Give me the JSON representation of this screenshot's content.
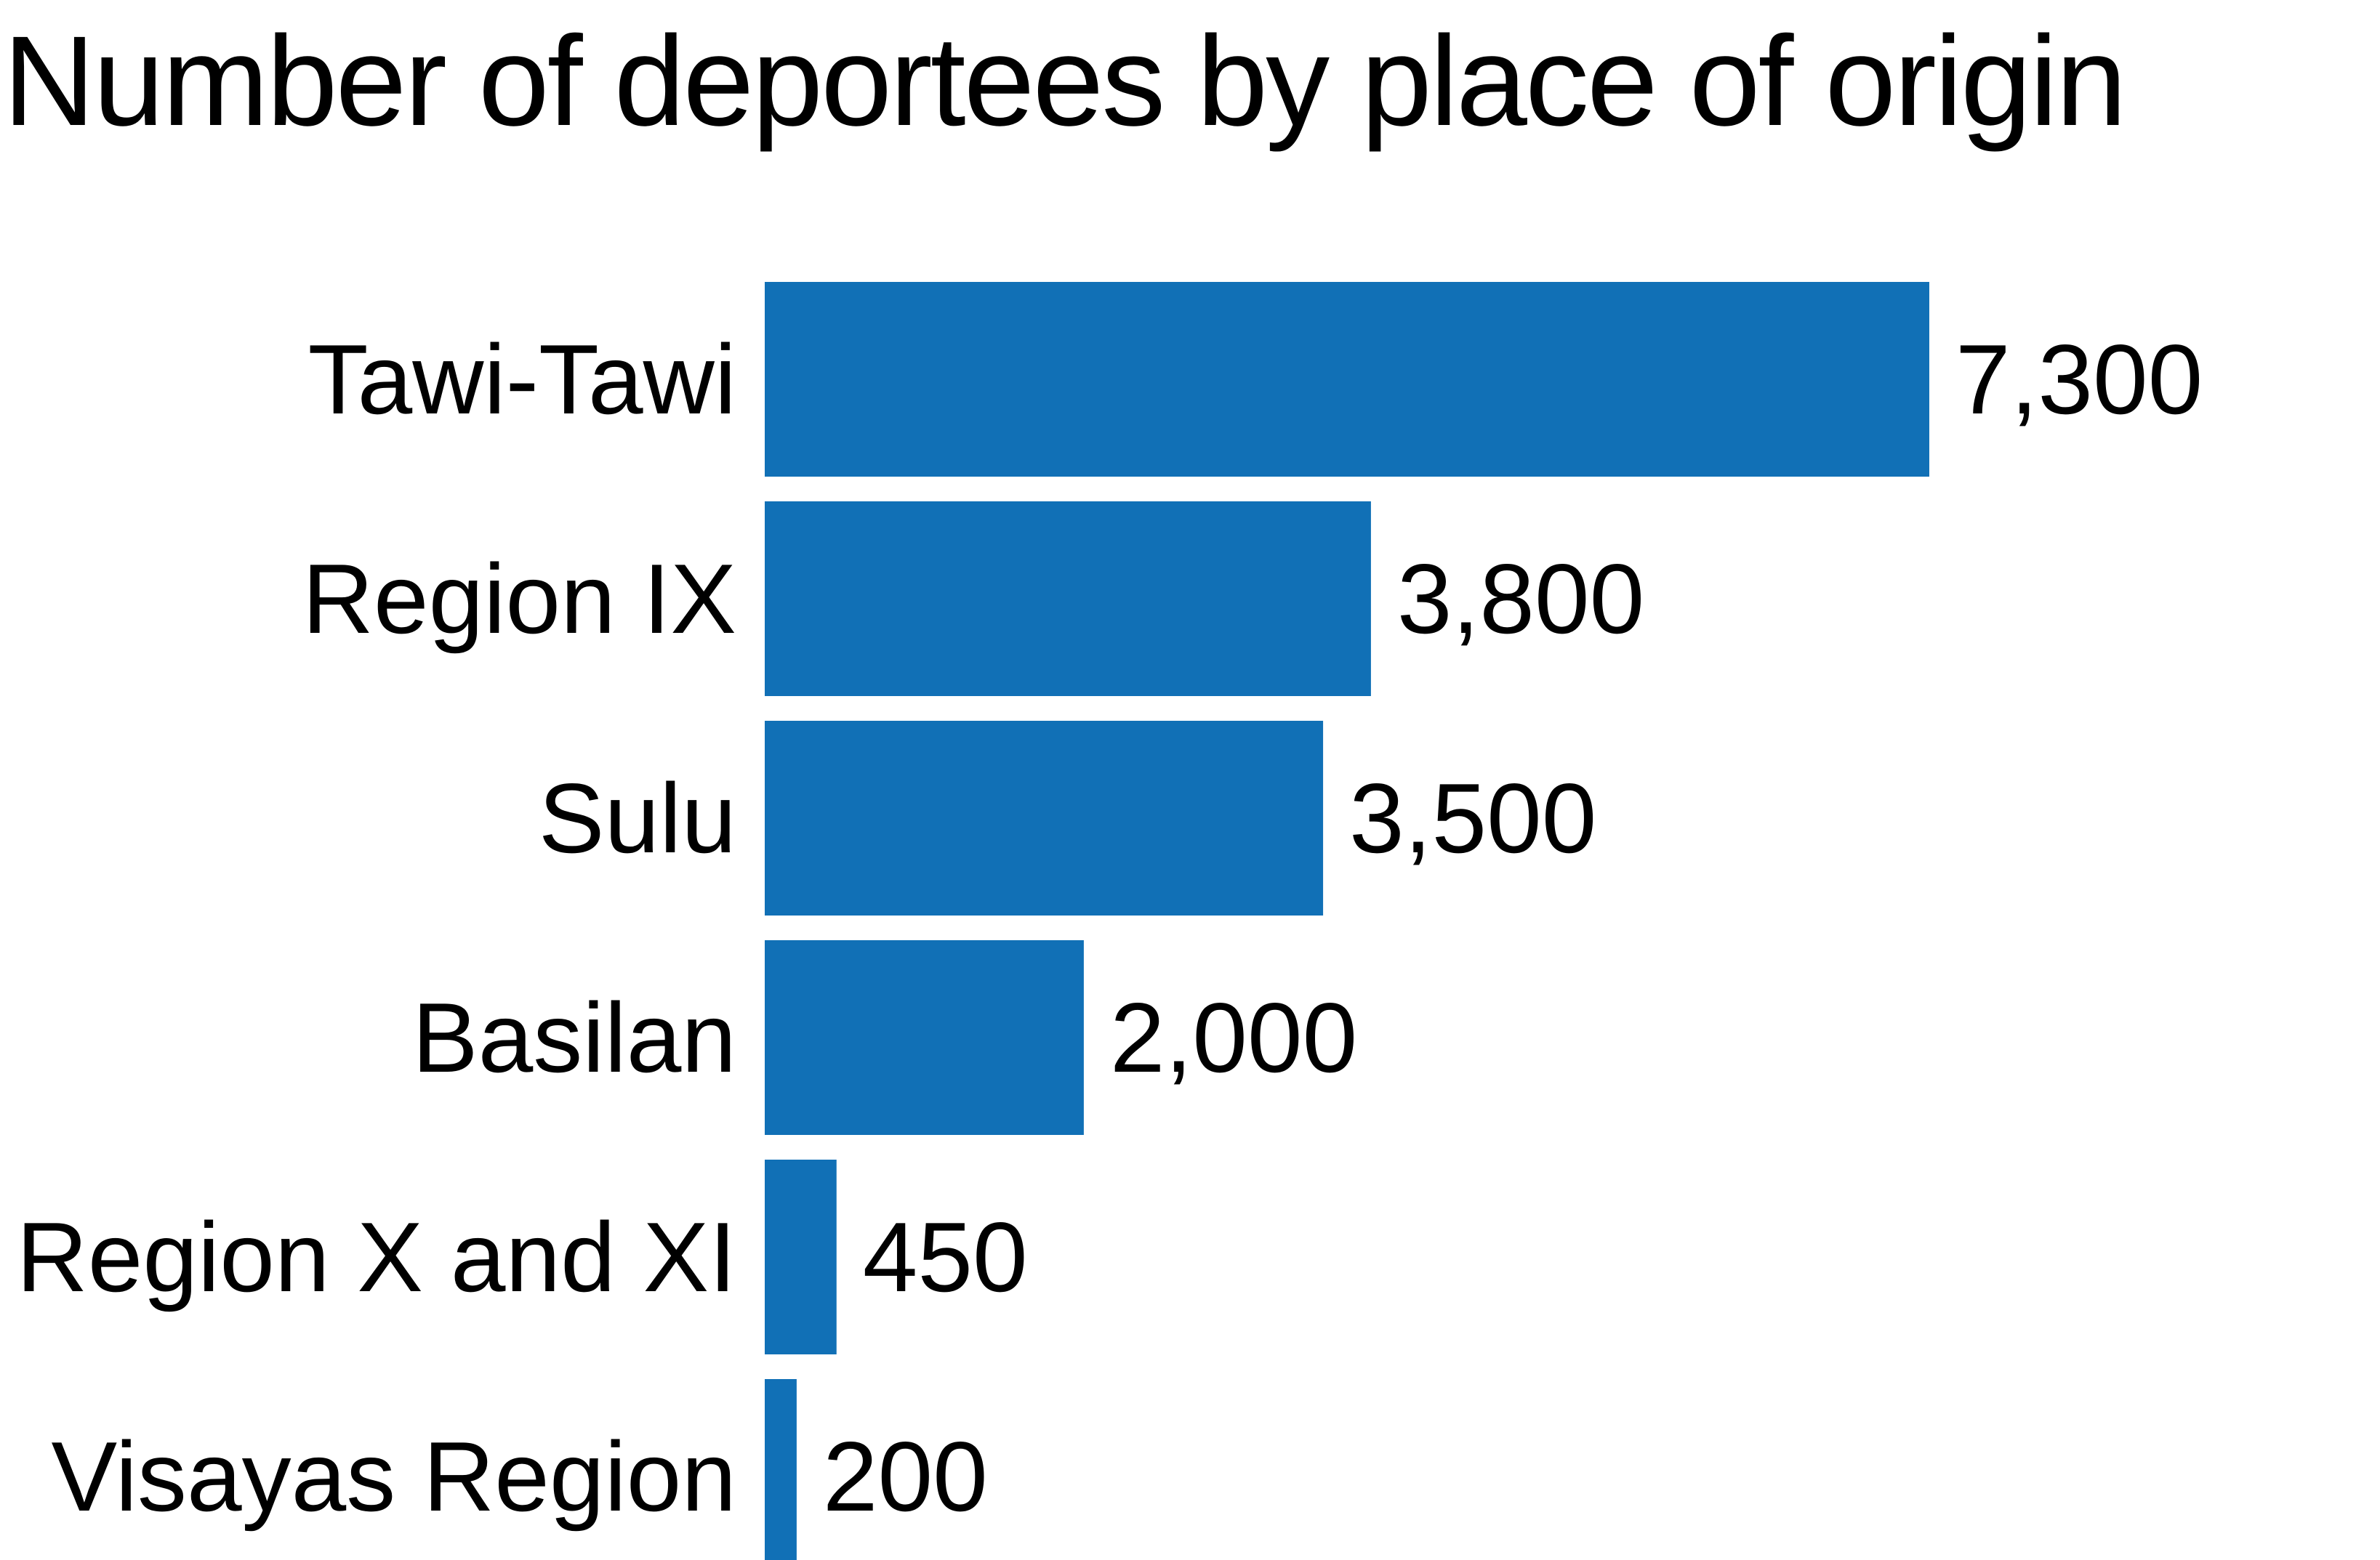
{
  "chart_data": {
    "type": "bar",
    "orientation": "horizontal",
    "title": "Number of deportees by place of origin",
    "xlabel": "",
    "ylabel": "",
    "categories": [
      "Tawi-Tawi",
      "Region IX",
      "Sulu",
      "Basilan",
      "Region X and XI",
      "Visayas Region"
    ],
    "values": [
      7300,
      3800,
      3500,
      2000,
      450,
      200
    ],
    "value_labels": [
      "7,300",
      "3,800",
      "3,500",
      "2,000",
      "450",
      "200"
    ],
    "xlim": [
      0,
      7300
    ],
    "grid": false,
    "legend": "none",
    "bar_color": "#1170b6"
  }
}
